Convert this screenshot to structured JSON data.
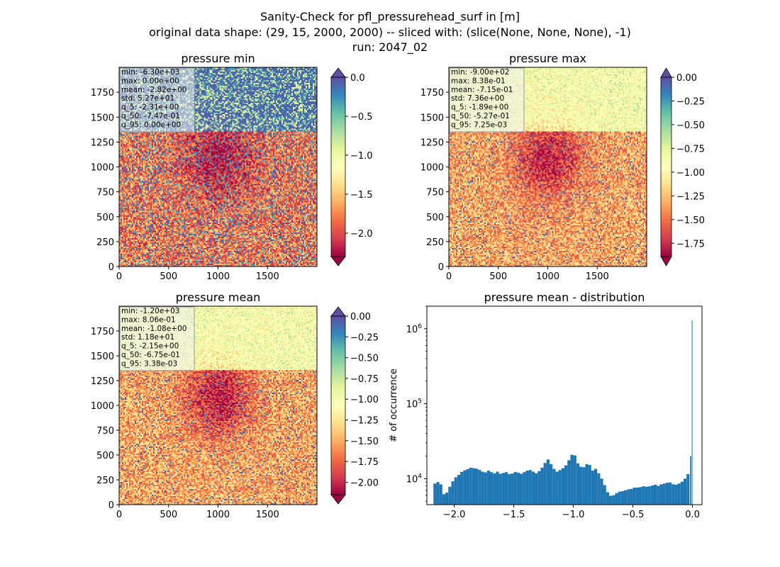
{
  "figure": {
    "title_lines": [
      "Sanity-Check for pfl_pressurehead_surf in [m]",
      "original data shape: (29, 15, 2000, 2000) -- sliced with: (slice(None, None, None), -1)",
      "run: 2047_02"
    ]
  },
  "chart_data": [
    {
      "type": "heatmap",
      "title": "pressure min",
      "colormap": "Spectral",
      "xlim": [
        0,
        2000
      ],
      "ylim": [
        0,
        2000
      ],
      "xticks": [
        "0",
        "500",
        "1000",
        "1500"
      ],
      "yticks": [
        "0",
        "250",
        "500",
        "750",
        "1000",
        "1250",
        "1500",
        "1750"
      ],
      "colorbar": {
        "range": [
          -2.3,
          0.0
        ],
        "ticks": [
          "0.0",
          "-0.5",
          "-1.0",
          "-1.5",
          "-2.0"
        ],
        "tick_values": [
          0.0,
          -0.5,
          -1.0,
          -1.5,
          -2.0
        ],
        "extend": "both",
        "extend_top_color": "#5e4fa2"
      },
      "stats": [
        "min: -6.30e+03",
        "max: 0.00e+00",
        "mean: -2.82e+00",
        "std: 5.27e+01",
        "q_5: -2.31e+00",
        "q_50: -7.47e-01",
        "q_95: 0.00e+00"
      ]
    },
    {
      "type": "heatmap",
      "title": "pressure max",
      "colormap": "Spectral",
      "xlim": [
        0,
        2000
      ],
      "ylim": [
        0,
        2000
      ],
      "xticks": [
        "0",
        "500",
        "1000",
        "1500"
      ],
      "yticks": [
        "0",
        "250",
        "500",
        "750",
        "1000",
        "1250",
        "1500",
        "1750"
      ],
      "colorbar": {
        "range": [
          -1.89,
          0.0
        ],
        "ticks": [
          "0.00",
          "-0.25",
          "-0.50",
          "-0.75",
          "-1.00",
          "-1.25",
          "-1.50",
          "-1.75"
        ],
        "tick_values": [
          0.0,
          -0.25,
          -0.5,
          -0.75,
          -1.0,
          -1.25,
          -1.5,
          -1.75
        ],
        "extend": "both",
        "extend_top_color": "#5e4fa2"
      },
      "stats": [
        "min: -9.00e+02",
        "max: 8.38e-01",
        "mean: -7.15e-01",
        "std: 7.36e+00",
        "q_5: -1.89e+00",
        "q_50: -5.27e-01",
        "q_95: 7.25e-03"
      ]
    },
    {
      "type": "heatmap",
      "title": "pressure mean",
      "colormap": "Spectral",
      "xlim": [
        0,
        2000
      ],
      "ylim": [
        0,
        2000
      ],
      "xticks": [
        "0",
        "500",
        "1000",
        "1500"
      ],
      "yticks": [
        "0",
        "250",
        "500",
        "750",
        "1000",
        "1250",
        "1500",
        "1750"
      ],
      "colorbar": {
        "range": [
          -2.15,
          0.0
        ],
        "ticks": [
          "0.00",
          "-0.25",
          "-0.50",
          "-0.75",
          "-1.00",
          "-1.25",
          "-1.50",
          "-1.75",
          "-2.00"
        ],
        "tick_values": [
          0.0,
          -0.25,
          -0.5,
          -0.75,
          -1.0,
          -1.25,
          -1.5,
          -1.75,
          -2.0
        ],
        "extend": "both",
        "extend_top_color": "#5e4fa2"
      },
      "stats": [
        "min: -1.20e+03",
        "max: 8.06e-01",
        "mean: -1.08e+00",
        "std: 1.18e+01",
        "q_5: -2.15e+00",
        "q_50: -6.75e-01",
        "q_95: 3.38e-03"
      ]
    },
    {
      "type": "bar",
      "title": "pressure mean - distribution",
      "xlabel": "",
      "ylabel": "# of occurrence",
      "yscale": "log",
      "xlim": [
        -2.23,
        0.08
      ],
      "ylim": [
        4500,
        2000000
      ],
      "xticks": [
        -2.0,
        -1.5,
        -1.0,
        -0.5,
        0.0
      ],
      "xtick_labels": [
        "−2.0",
        "−1.5",
        "−1.0",
        "−0.5",
        "0.0"
      ],
      "yticks": [
        10000,
        100000,
        1000000
      ],
      "ytick_bases": [
        "10",
        "10",
        "10"
      ],
      "ytick_exponents": [
        "4",
        "5",
        "6"
      ],
      "bar_color": "#1f77b4",
      "x": [
        -2.15,
        -2.125,
        -2.1,
        -2.075,
        -2.05,
        -2.025,
        -2.0,
        -1.975,
        -1.95,
        -1.925,
        -1.9,
        -1.875,
        -1.85,
        -1.825,
        -1.8,
        -1.775,
        -1.75,
        -1.725,
        -1.7,
        -1.675,
        -1.65,
        -1.625,
        -1.6,
        -1.575,
        -1.55,
        -1.525,
        -1.5,
        -1.475,
        -1.45,
        -1.425,
        -1.4,
        -1.375,
        -1.35,
        -1.325,
        -1.3,
        -1.275,
        -1.25,
        -1.225,
        -1.2,
        -1.175,
        -1.15,
        -1.125,
        -1.1,
        -1.075,
        -1.05,
        -1.025,
        -1.0,
        -0.975,
        -0.95,
        -0.925,
        -0.9,
        -0.875,
        -0.85,
        -0.825,
        -0.8,
        -0.775,
        -0.75,
        -0.725,
        -0.7,
        -0.675,
        -0.65,
        -0.625,
        -0.6,
        -0.575,
        -0.55,
        -0.525,
        -0.5,
        -0.475,
        -0.45,
        -0.425,
        -0.4,
        -0.375,
        -0.35,
        -0.325,
        -0.3,
        -0.275,
        -0.25,
        -0.225,
        -0.2,
        -0.175,
        -0.15,
        -0.125,
        -0.1,
        -0.075,
        -0.05,
        -0.025,
        -0.01,
        0.0
      ],
      "values": [
        8600,
        9000,
        8400,
        6200,
        6500,
        7800,
        9200,
        10400,
        11200,
        12300,
        12900,
        13400,
        14000,
        13800,
        13600,
        13100,
        12400,
        12100,
        12800,
        12200,
        11800,
        12400,
        11600,
        11900,
        12200,
        11500,
        11700,
        12300,
        12000,
        11600,
        12200,
        12800,
        13000,
        12400,
        11800,
        12600,
        14000,
        16200,
        18000,
        15600,
        13500,
        12400,
        13000,
        13800,
        15000,
        17600,
        20800,
        20400,
        16000,
        14400,
        14200,
        15600,
        15200,
        12800,
        13500,
        11800,
        10000,
        8200,
        6600,
        5900,
        6000,
        6400,
        6700,
        6800,
        7000,
        7200,
        7300,
        7600,
        7600,
        7700,
        7900,
        7800,
        7900,
        8100,
        8300,
        8000,
        8400,
        8600,
        8800,
        8900,
        8400,
        8300,
        8600,
        9100,
        10000,
        11500,
        20000,
        1300000
      ]
    }
  ]
}
